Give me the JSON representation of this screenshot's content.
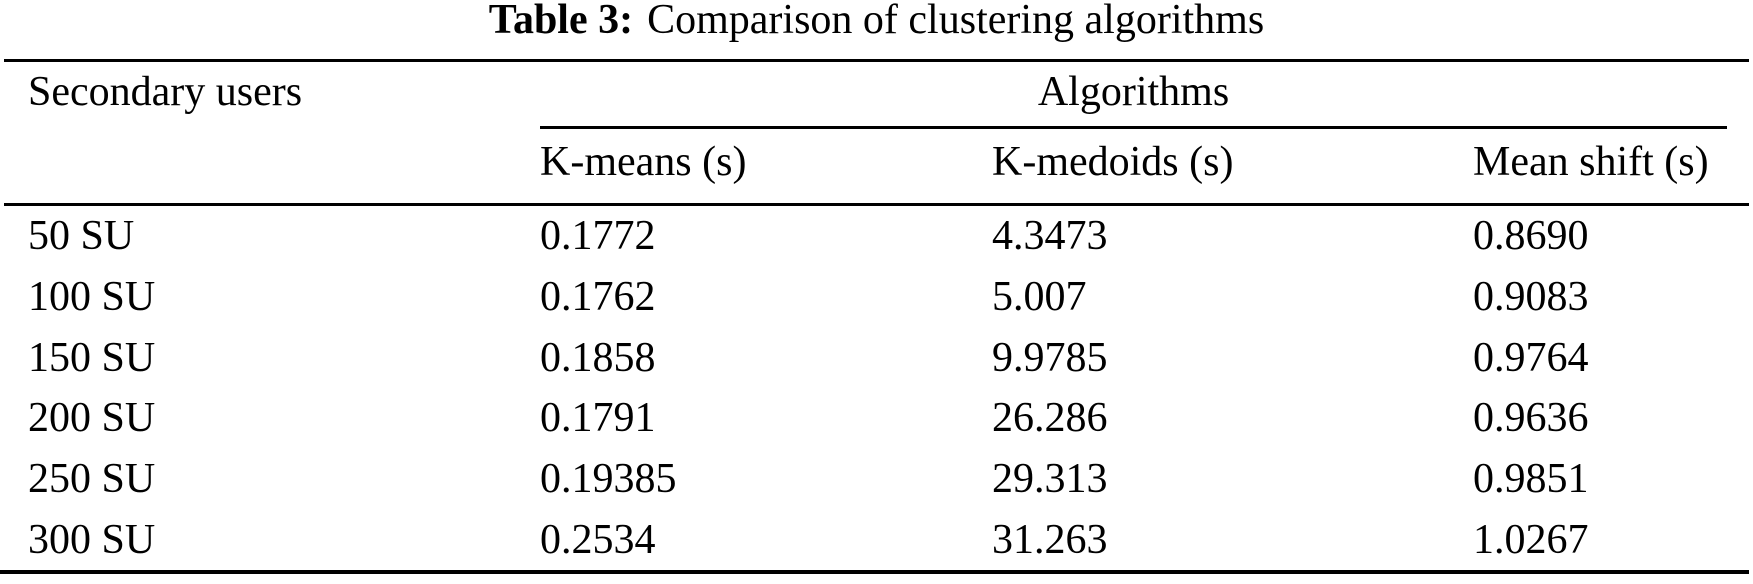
{
  "caption": {
    "label": "Table 3:",
    "text": "Comparison of clustering algorithms"
  },
  "table": {
    "row_header": "Secondary users",
    "group_header": "Algorithms",
    "columns": [
      "K-means (s)",
      "K-medoids (s)",
      "Mean shift (s)"
    ],
    "rows": [
      [
        "50 SU",
        "0.1772",
        "4.3473",
        "0.8690"
      ],
      [
        "100 SU",
        "0.1762",
        "5.007",
        "0.9083"
      ],
      [
        "150 SU",
        "0.1858",
        "9.9785",
        "0.9764"
      ],
      [
        "200 SU",
        "0.1791",
        "26.286",
        "0.9636"
      ],
      [
        "250 SU",
        "0.19385",
        "29.313",
        "0.9851"
      ],
      [
        "300 SU",
        "0.2534",
        "31.263",
        "1.0267"
      ]
    ]
  },
  "chart_data": {
    "type": "table",
    "title": "Table 3: Comparison of clustering algorithms",
    "row_label": "Secondary users",
    "column_group": "Algorithms",
    "columns": [
      "K-means (s)",
      "K-medoids (s)",
      "Mean shift (s)"
    ],
    "rows": [
      "50 SU",
      "100 SU",
      "150 SU",
      "200 SU",
      "250 SU",
      "300 SU"
    ],
    "values": [
      [
        0.1772,
        4.3473,
        0.869
      ],
      [
        0.1762,
        5.007,
        0.9083
      ],
      [
        0.1858,
        9.9785,
        0.9764
      ],
      [
        0.1791,
        26.286,
        0.9636
      ],
      [
        0.19385,
        29.313,
        0.9851
      ],
      [
        0.2534,
        31.263,
        1.0267
      ]
    ],
    "colors": {
      "text": "#000000",
      "background": "#ffffff"
    }
  }
}
